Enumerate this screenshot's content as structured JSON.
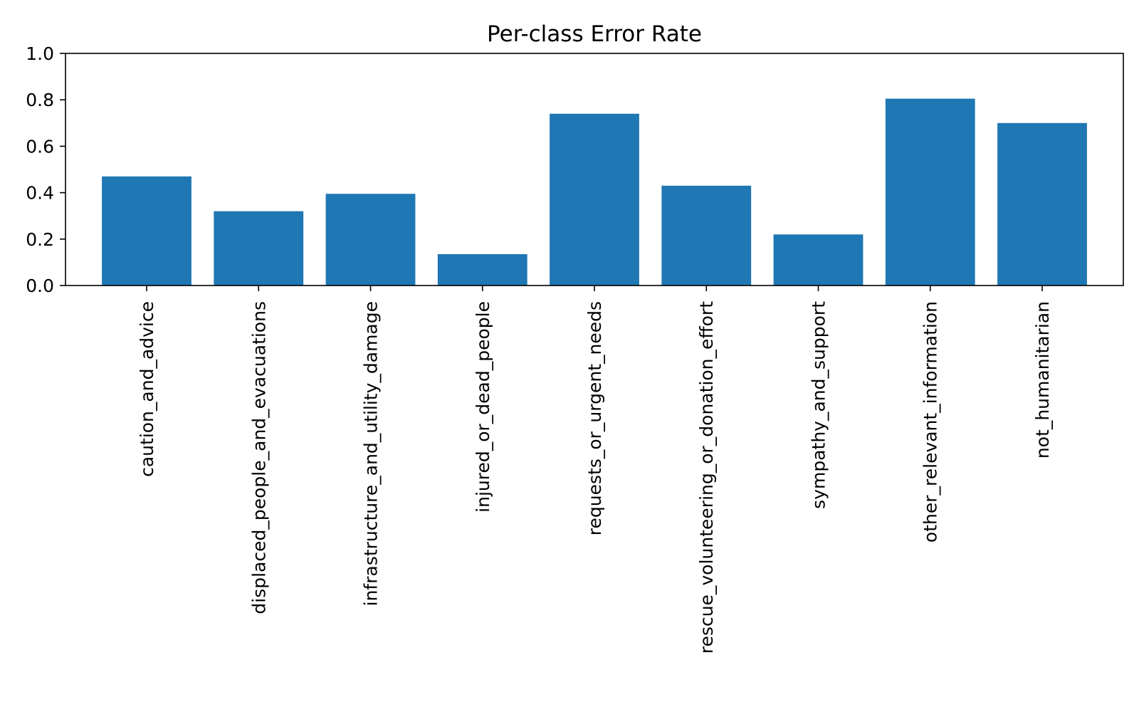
{
  "chart_data": {
    "type": "bar",
    "title": "Per-class Error Rate",
    "xlabel": "",
    "ylabel": "",
    "ylim": [
      0,
      1.0
    ],
    "yticks": [
      "0.0",
      "0.2",
      "0.4",
      "0.6",
      "0.8",
      "1.0"
    ],
    "grid": false,
    "legend": "none",
    "bar_color": "#1f77b4",
    "categories": [
      "caution_and_advice",
      "displaced_people_and_evacuations",
      "infrastructure_and_utility_damage",
      "injured_or_dead_people",
      "requests_or_urgent_needs",
      "rescue_volunteering_or_donation_effort",
      "sympathy_and_support",
      "other_relevant_information",
      "not_humanitarian"
    ],
    "values": [
      0.47,
      0.32,
      0.395,
      0.135,
      0.74,
      0.43,
      0.22,
      0.805,
      0.7
    ]
  }
}
